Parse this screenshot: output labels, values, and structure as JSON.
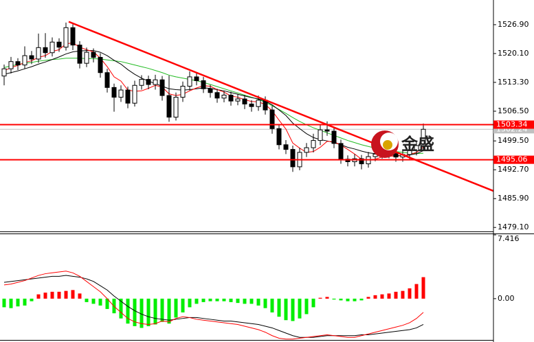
{
  "watermark": "金盛",
  "chart_data": [
    {
      "type": "candlestick",
      "categories": [
        null,
        null,
        null,
        null,
        null,
        null,
        null,
        null,
        null,
        null,
        null,
        null,
        null,
        null,
        null,
        null,
        null,
        null,
        null,
        null,
        null,
        null,
        null,
        null,
        null,
        null,
        null,
        null,
        null,
        null,
        null,
        null,
        null,
        null,
        null,
        null,
        null,
        null,
        null,
        null,
        null,
        null,
        null,
        null,
        null,
        null,
        null,
        null,
        null,
        null,
        null,
        null,
        null,
        null,
        null,
        null,
        null,
        null,
        null,
        null,
        null,
        null
      ],
      "open": [
        1514.8,
        1516.5,
        1518.2,
        1517.4,
        1519.6,
        1518.8,
        1521.5,
        1520.3,
        1522.8,
        1521.6,
        1526.2,
        1522.1,
        1517.8,
        1520.4,
        1519.2,
        1515.6,
        1512.1,
        1509.8,
        1511.5,
        1508.4,
        1512.6,
        1514.0,
        1512.8,
        1513.9,
        1510.2,
        1505.1,
        1509.8,
        1512.4,
        1514.6,
        1513.7,
        1511.8,
        1510.9,
        1509.6,
        1510.3,
        1508.9,
        1509.4,
        1508.2,
        1507.6,
        1509.1,
        1506.8,
        1502.4,
        1498.6,
        1497.5,
        1493.4,
        1496.8,
        1497.9,
        1499.6,
        1502.1,
        1501.8,
        1498.9,
        1495.2,
        1494.6,
        1495.3,
        1494.1,
        1495.8,
        1496.4,
        1497.1,
        1496.5,
        1495.7,
        1496.3,
        1497.2,
        1498.4
      ],
      "high": [
        1517.5,
        1519.3,
        1519.0,
        1521.8,
        1520.7,
        1524.8,
        1524.9,
        1523.9,
        1523.7,
        1527.4,
        1527.0,
        1523.0,
        1521.5,
        1521.3,
        1520.2,
        1516.5,
        1513.0,
        1512.6,
        1512.3,
        1513.7,
        1515.0,
        1514.9,
        1515.1,
        1514.8,
        1514.9,
        1510.9,
        1513.5,
        1515.9,
        1515.4,
        1514.6,
        1512.7,
        1511.8,
        1511.3,
        1511.1,
        1510.5,
        1510.3,
        1509.1,
        1510.2,
        1510.0,
        1507.7,
        1503.3,
        1499.7,
        1498.4,
        1497.9,
        1499.0,
        1501.2,
        1503.4,
        1504.1,
        1502.7,
        1499.8,
        1496.1,
        1496.4,
        1496.2,
        1496.9,
        1497.5,
        1498.2,
        1498.0,
        1497.4,
        1497.4,
        1498.3,
        1499.5,
        1503.6
      ],
      "low": [
        1512.6,
        1515.4,
        1516.2,
        1516.5,
        1517.6,
        1517.9,
        1519.1,
        1519.4,
        1520.5,
        1520.8,
        1520.9,
        1516.6,
        1516.9,
        1518.0,
        1514.4,
        1510.9,
        1506.4,
        1508.7,
        1507.2,
        1507.6,
        1511.6,
        1511.7,
        1511.6,
        1509.0,
        1504.0,
        1504.3,
        1508.7,
        1511.4,
        1512.6,
        1510.8,
        1509.7,
        1508.5,
        1508.6,
        1507.8,
        1507.9,
        1507.0,
        1506.4,
        1506.6,
        1505.7,
        1501.2,
        1497.5,
        1496.4,
        1492.2,
        1492.6,
        1495.7,
        1496.8,
        1498.5,
        1500.7,
        1497.8,
        1494.1,
        1493.5,
        1493.5,
        1492.8,
        1493.2,
        1494.7,
        1495.3,
        1495.4,
        1494.6,
        1494.6,
        1495.2,
        1496.1,
        1497.3
      ],
      "close": [
        1516.5,
        1518.2,
        1517.4,
        1519.6,
        1518.8,
        1521.5,
        1520.3,
        1522.8,
        1521.6,
        1526.2,
        1522.1,
        1517.8,
        1520.4,
        1519.2,
        1515.6,
        1512.1,
        1509.8,
        1511.5,
        1508.4,
        1512.6,
        1514.0,
        1512.8,
        1513.9,
        1510.2,
        1505.1,
        1509.8,
        1512.4,
        1514.6,
        1513.7,
        1511.8,
        1510.9,
        1509.6,
        1510.3,
        1508.9,
        1509.4,
        1508.2,
        1507.6,
        1509.1,
        1506.8,
        1502.4,
        1498.6,
        1497.5,
        1493.4,
        1496.8,
        1497.9,
        1499.6,
        1502.1,
        1501.8,
        1498.9,
        1495.2,
        1494.6,
        1495.3,
        1494.1,
        1495.8,
        1496.4,
        1497.1,
        1496.5,
        1495.7,
        1496.3,
        1497.2,
        1498.4,
        1502.24
      ],
      "up_color": "#ffffff",
      "down_color": "#000000",
      "series": [
        {
          "color": "#ff0000",
          "values": [
            1516.0,
            1516.8,
            1517.3,
            1518.0,
            1518.4,
            1519.2,
            1519.6,
            1520.6,
            1521.0,
            1522.4,
            1522.6,
            1521.6,
            1521.0,
            1520.5,
            1519.0,
            1517.0,
            1514.6,
            1513.6,
            1511.5,
            1511.2,
            1511.3,
            1511.9,
            1512.6,
            1512.2,
            1510.6,
            1510.2,
            1510.5,
            1511.3,
            1512.0,
            1512.5,
            1512.4,
            1511.6,
            1511.0,
            1510.1,
            1509.8,
            1509.2,
            1508.8,
            1508.7,
            1508.1,
            1506.6,
            1504.4,
            1502.3,
            1499.0,
            1497.8,
            1496.8,
            1497.0,
            1498.0,
            1499.4,
            1499.3,
            1498.5,
            1497.5,
            1496.4,
            1495.2,
            1495.0,
            1495.2,
            1495.7,
            1495.9,
            1495.9,
            1496.0,
            1496.3,
            1496.8,
            1498.0
          ]
        },
        {
          "color": "#000000",
          "values": [
            1515.2,
            1515.6,
            1516.0,
            1516.5,
            1517.0,
            1517.6,
            1518.1,
            1518.7,
            1519.3,
            1520.0,
            1520.5,
            1520.7,
            1520.8,
            1520.8,
            1520.4,
            1519.6,
            1518.5,
            1517.6,
            1516.3,
            1515.2,
            1514.3,
            1513.6,
            1513.0,
            1512.4,
            1511.8,
            1511.6,
            1511.5,
            1511.6,
            1511.8,
            1512.0,
            1511.9,
            1511.6,
            1511.3,
            1510.9,
            1510.5,
            1510.1,
            1509.7,
            1509.4,
            1508.9,
            1508.0,
            1506.8,
            1505.5,
            1503.7,
            1502.4,
            1501.2,
            1500.3,
            1499.8,
            1499.5,
            1499.1,
            1498.6,
            1498.0,
            1497.6,
            1497.1,
            1496.7,
            1496.5,
            1496.4,
            1496.2,
            1496.1,
            1496.0,
            1496.2,
            1496.5,
            1497.2
          ]
        },
        {
          "color": "#22bb22",
          "values": [
            1516.8,
            1517.2,
            1517.5,
            1517.8,
            1518.0,
            1518.3,
            1518.5,
            1518.7,
            1518.8,
            1519.0,
            1519.0,
            1519.0,
            1518.9,
            1518.9,
            1518.8,
            1518.6,
            1518.4,
            1518.2,
            1517.8,
            1517.4,
            1517.0,
            1516.6,
            1516.1,
            1515.6,
            1515.0,
            1514.6,
            1514.3,
            1514.0,
            1513.7,
            1513.3,
            1512.8,
            1512.3,
            1511.8,
            1511.3,
            1510.8,
            1510.3,
            1509.8,
            1509.3,
            1508.6,
            1507.8,
            1506.9,
            1506.0,
            1505.0,
            1504.1,
            1503.3,
            1502.6,
            1502.0,
            1501.4,
            1500.8,
            1500.2,
            1499.6,
            1499.1,
            1498.6,
            1498.2,
            1497.8,
            1497.5,
            1497.2,
            1497.0,
            1496.8,
            1496.6,
            1496.5,
            1496.6
          ]
        }
      ],
      "trendline": {
        "values": [
          1527.6,
          1487.7
        ],
        "color": "#ff0000"
      },
      "hlines": [
        {
          "value": 1503.34,
          "color": "#ff0000"
        },
        {
          "value": 1495.06,
          "color": "#ff0000"
        }
      ],
      "last_price": {
        "value": 1502.24,
        "color": "#c0c0c0"
      },
      "ylim": [
        1478.0,
        1531.1
      ],
      "yticks": [
        {
          "value": 1526.9,
          "label": "1526.90"
        },
        {
          "value": 1520.1,
          "label": "1520.10"
        },
        {
          "value": 1513.3,
          "label": "1513.30"
        },
        {
          "value": 1506.5,
          "label": "1506.50"
        },
        {
          "value": 1499.5,
          "label": "1499.50"
        },
        {
          "value": 1492.7,
          "label": "1492.70"
        },
        {
          "value": 1485.9,
          "label": "1485.90"
        },
        {
          "value": 1479.1,
          "label": "1479.10"
        }
      ]
    },
    {
      "type": "bar",
      "values": [
        -1.0,
        -1.1,
        -0.9,
        -0.8,
        -0.3,
        0.5,
        0.7,
        0.8,
        0.8,
        0.9,
        1.0,
        0.6,
        -0.4,
        -0.6,
        -0.8,
        -1.2,
        -1.7,
        -2.3,
        -2.9,
        -3.2,
        -3.4,
        -3.2,
        -3.0,
        -2.7,
        -2.9,
        -2.2,
        -1.6,
        -1.0,
        -0.6,
        -0.4,
        -0.3,
        -0.3,
        -0.3,
        -0.4,
        -0.5,
        -0.6,
        -0.6,
        -0.8,
        -1.1,
        -1.6,
        -2.1,
        -2.5,
        -2.6,
        -2.3,
        -1.8,
        -1.0,
        0.1,
        0.2,
        -0.1,
        -0.2,
        -0.3,
        -0.3,
        -0.2,
        0.2,
        0.4,
        0.5,
        0.6,
        0.8,
        0.9,
        1.2,
        1.7,
        2.5
      ],
      "up_color": "#ff0000",
      "down_color": "#00ee00",
      "series": [
        {
          "color": "#000000",
          "values": [
            1.9,
            2.0,
            2.1,
            2.2,
            2.3,
            2.4,
            2.5,
            2.6,
            2.6,
            2.7,
            2.6,
            2.5,
            2.3,
            2.0,
            1.5,
            1.0,
            0.3,
            -0.3,
            -0.9,
            -1.4,
            -1.8,
            -2.1,
            -2.3,
            -2.4,
            -2.5,
            -2.4,
            -2.3,
            -2.2,
            -2.2,
            -2.3,
            -2.4,
            -2.5,
            -2.6,
            -2.6,
            -2.7,
            -2.8,
            -2.9,
            -3.0,
            -3.2,
            -3.4,
            -3.7,
            -4.0,
            -4.3,
            -4.5,
            -4.5,
            -4.5,
            -4.4,
            -4.3,
            -4.3,
            -4.3,
            -4.3,
            -4.3,
            -4.2,
            -4.2,
            -4.1,
            -4.0,
            -3.9,
            -3.8,
            -3.7,
            -3.6,
            -3.4,
            -3.0
          ]
        },
        {
          "color": "#ff0000",
          "values": [
            1.6,
            1.7,
            1.9,
            2.1,
            2.4,
            2.7,
            2.9,
            3.0,
            3.1,
            3.2,
            3.0,
            2.6,
            2.0,
            1.4,
            0.8,
            0.0,
            -0.9,
            -1.6,
            -2.3,
            -2.7,
            -2.9,
            -3.0,
            -2.9,
            -2.6,
            -2.7,
            -2.3,
            -2.1,
            -2.2,
            -2.4,
            -2.5,
            -2.6,
            -2.7,
            -2.8,
            -2.9,
            -3.0,
            -3.2,
            -3.4,
            -3.6,
            -3.9,
            -4.3,
            -4.6,
            -4.7,
            -4.7,
            -4.6,
            -4.5,
            -4.4,
            -4.3,
            -4.2,
            -4.3,
            -4.4,
            -4.5,
            -4.5,
            -4.3,
            -4.1,
            -3.9,
            -3.7,
            -3.5,
            -3.3,
            -3.1,
            -2.8,
            -2.3,
            -1.6
          ]
        }
      ],
      "ylim": [
        -4.8,
        7.416
      ],
      "yticks": [
        7.416,
        {
          "value": 0,
          "label": "0.00"
        }
      ]
    }
  ]
}
